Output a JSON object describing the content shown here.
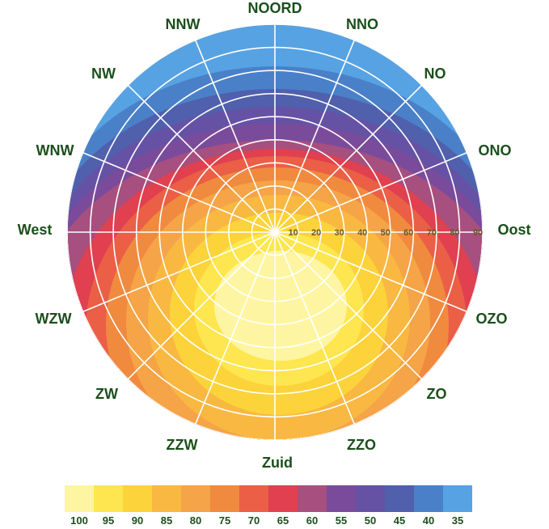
{
  "directions": [
    {
      "key": "n",
      "label": "NOORD"
    },
    {
      "key": "nno",
      "label": "NNO"
    },
    {
      "key": "no",
      "label": "NO"
    },
    {
      "key": "ono",
      "label": "ONO"
    },
    {
      "key": "o",
      "label": "Oost"
    },
    {
      "key": "ozo",
      "label": "OZO"
    },
    {
      "key": "zo",
      "label": "ZO"
    },
    {
      "key": "zzo",
      "label": "ZZO"
    },
    {
      "key": "z",
      "label": "Zuid"
    },
    {
      "key": "zzw",
      "label": "ZZW"
    },
    {
      "key": "zw",
      "label": "ZW"
    },
    {
      "key": "wzw",
      "label": "WZW"
    },
    {
      "key": "w",
      "label": "West"
    },
    {
      "key": "wnw",
      "label": "WNW"
    },
    {
      "key": "nw",
      "label": "NW"
    },
    {
      "key": "nnw",
      "label": "NNW"
    }
  ],
  "ring_labels": [
    "10",
    "20",
    "30",
    "40",
    "50",
    "60",
    "70",
    "80",
    "90"
  ],
  "legend": [
    {
      "value": "100",
      "color": "#fef5a2"
    },
    {
      "value": "95",
      "color": "#fde64f"
    },
    {
      "value": "90",
      "color": "#fcd33b"
    },
    {
      "value": "85",
      "color": "#f9b842"
    },
    {
      "value": "80",
      "color": "#f5a447"
    },
    {
      "value": "75",
      "color": "#f08a3f"
    },
    {
      "value": "70",
      "color": "#ea5f46"
    },
    {
      "value": "65",
      "color": "#e0404f"
    },
    {
      "value": "60",
      "color": "#a74f7f"
    },
    {
      "value": "55",
      "color": "#7a4b9b"
    },
    {
      "value": "50",
      "color": "#6652a5"
    },
    {
      "value": "45",
      "color": "#5060ac"
    },
    {
      "value": "40",
      "color": "#4a80c8"
    },
    {
      "value": "35",
      "color": "#57a2e2"
    }
  ],
  "colors": {
    "label_text": "#1b4f1b",
    "ring_text": "#6b5b2a",
    "grid": "#ffffff"
  }
}
